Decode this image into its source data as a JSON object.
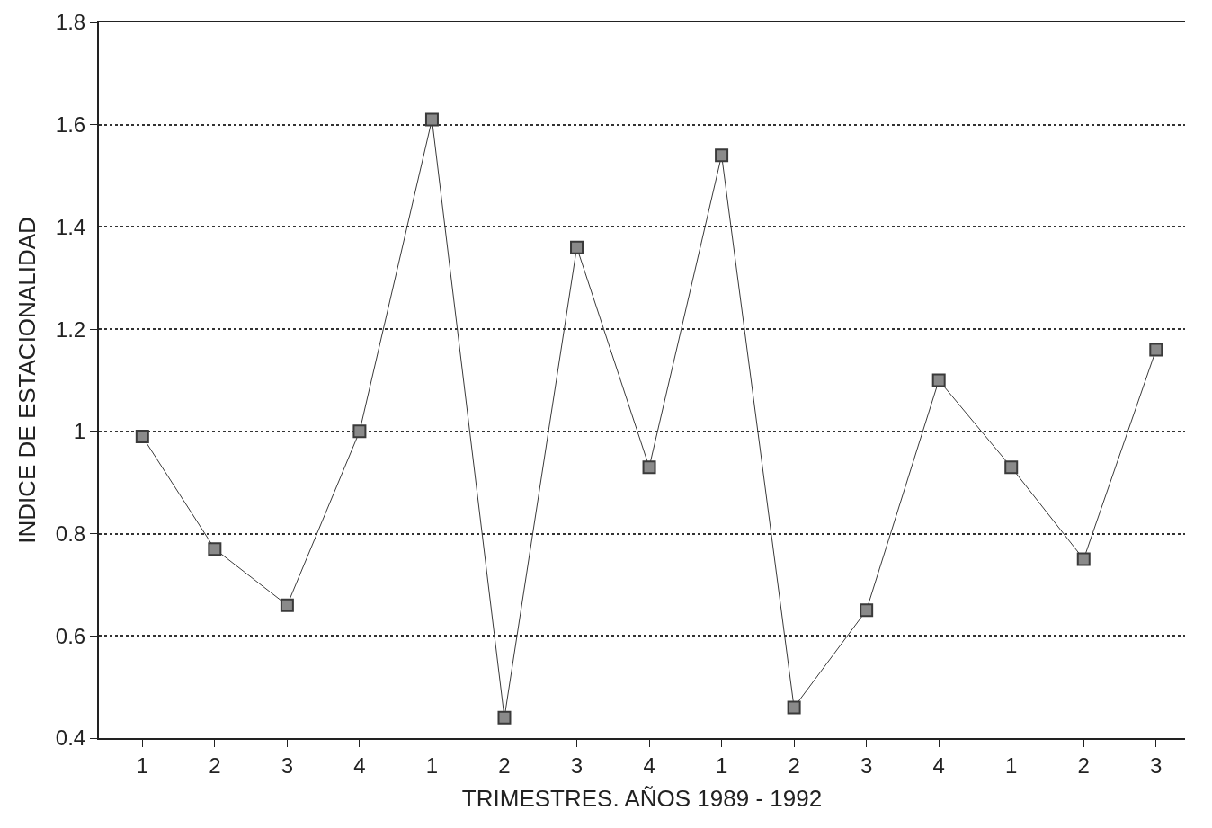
{
  "chart_data": {
    "type": "line",
    "xlabel": "TRIMESTRES. AÑOS 1989 - 1992",
    "ylabel": "INDICE DE ESTACIONALIDAD",
    "categories": [
      "1",
      "2",
      "3",
      "4",
      "1",
      "2",
      "3",
      "4",
      "1",
      "2",
      "3",
      "4",
      "1",
      "2",
      "3"
    ],
    "series": [
      {
        "color": "#3a3a3a",
        "values": [
          0.99,
          0.77,
          0.66,
          1.0,
          1.61,
          0.44,
          1.36,
          0.93,
          1.54,
          0.46,
          0.65,
          1.1,
          0.93,
          0.75,
          1.16
        ]
      }
    ],
    "ylim": [
      0.4,
      1.8
    ],
    "yticks": [
      0.4,
      0.6,
      0.8,
      1,
      1.2,
      1.4,
      1.6,
      1.8
    ],
    "grid": "y",
    "marker": "square",
    "line_style": "solid"
  }
}
